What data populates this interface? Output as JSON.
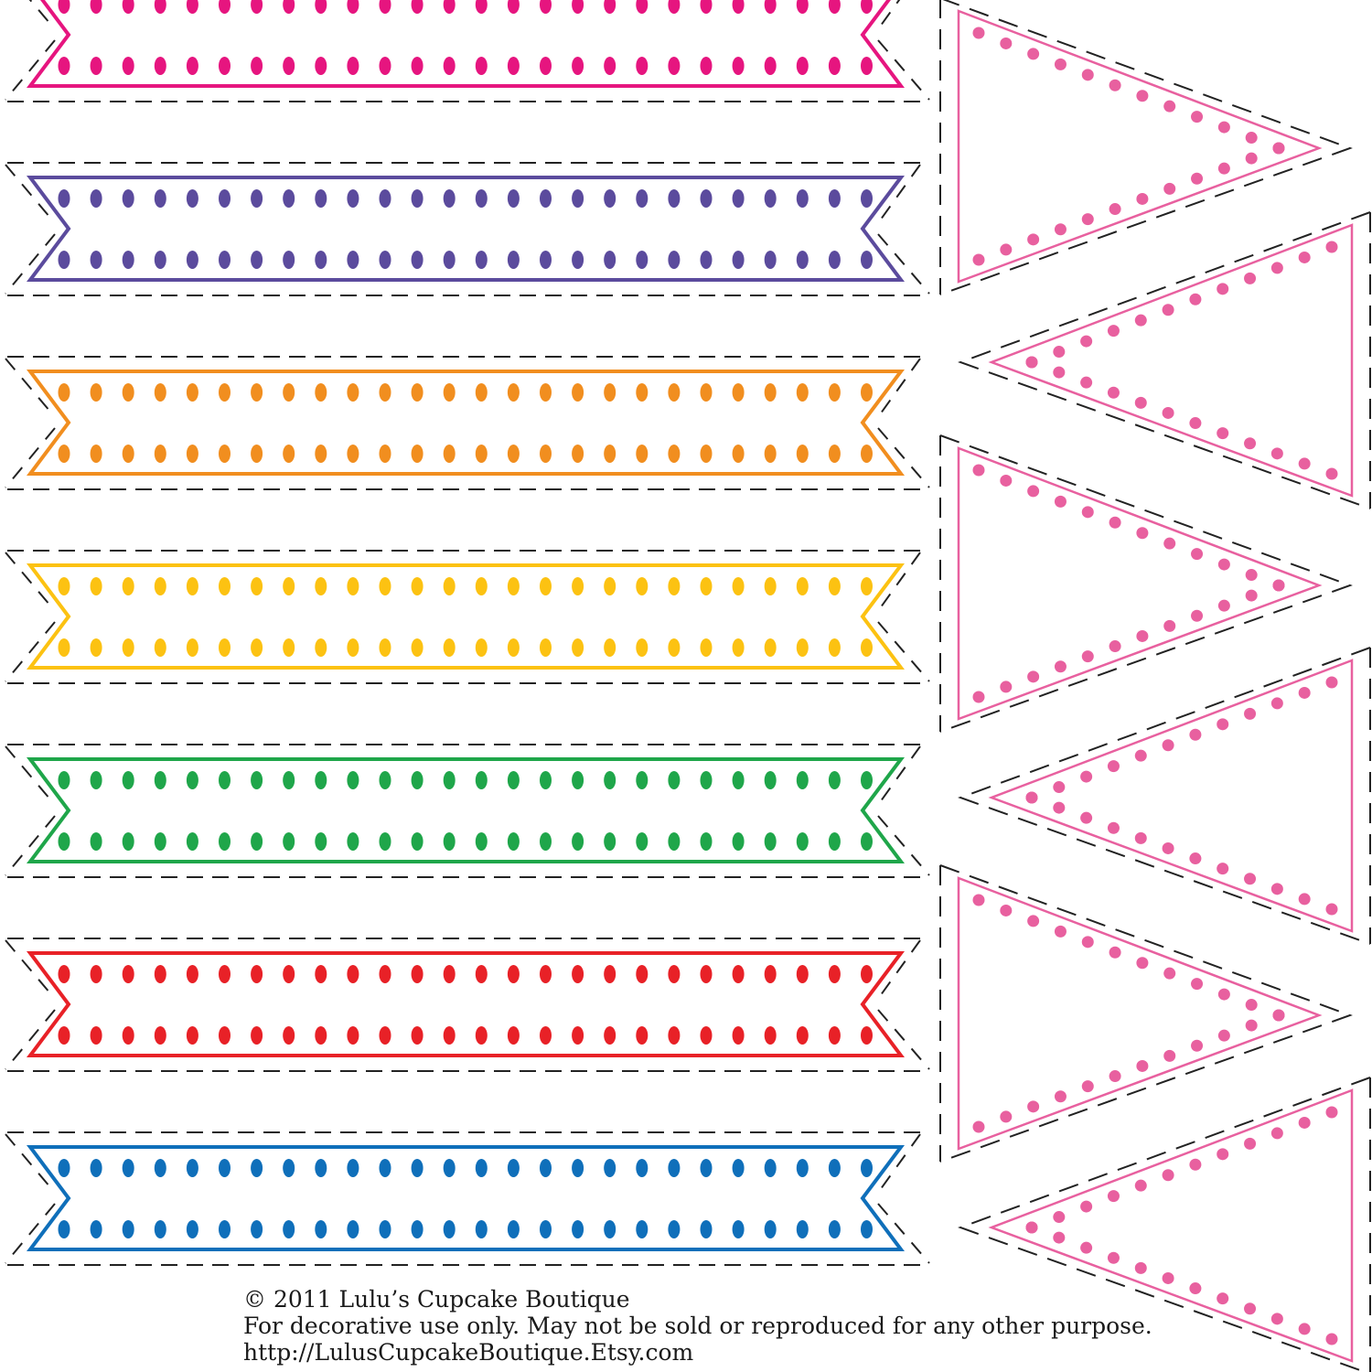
{
  "page": {
    "footer": {
      "copyright": "© 2011 Lulu’s Cupcake Boutique",
      "usage_notice": "For decorative use only. May not be sold or reproduced for any other purpose.",
      "url": "http://LulusCupcakeBoutique.Etsy.com"
    }
  },
  "ribbons": [
    {
      "name": "pink",
      "color": "#e6157f"
    },
    {
      "name": "purple",
      "color": "#5b4b9d"
    },
    {
      "name": "orange",
      "color": "#f18e1f"
    },
    {
      "name": "yellow",
      "color": "#fcc212"
    },
    {
      "name": "green",
      "color": "#1fa64a"
    },
    {
      "name": "red",
      "color": "#e82127"
    },
    {
      "name": "blue",
      "color": "#0f6fba"
    }
  ],
  "pennants": {
    "color": "#e8609f",
    "items": [
      {
        "name": "right-pointing"
      },
      {
        "name": "left-pointing"
      },
      {
        "name": "right-pointing"
      },
      {
        "name": "left-pointing"
      },
      {
        "name": "right-pointing"
      },
      {
        "name": "left-pointing"
      }
    ]
  },
  "cut_line_color": "#222222"
}
